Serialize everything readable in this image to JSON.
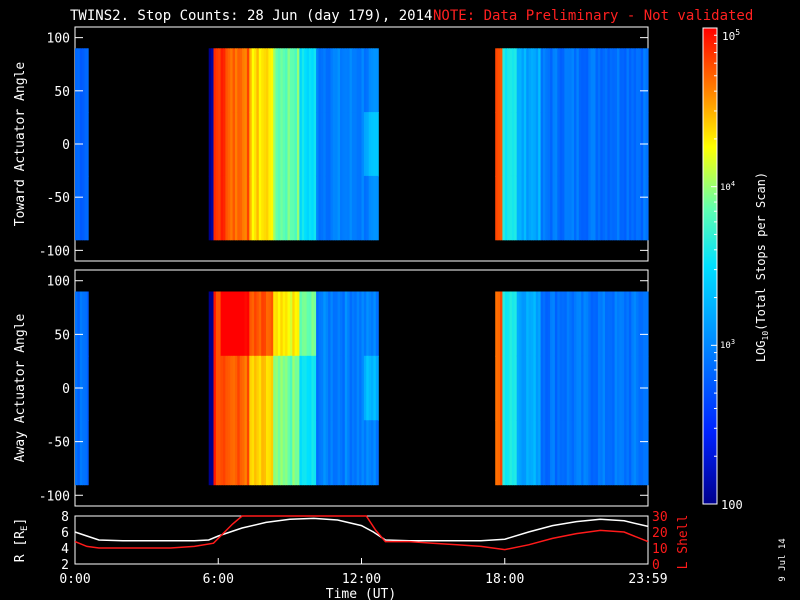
{
  "title": {
    "main": "TWINS2. Stop Counts: 28 Jun (day 179), 2014",
    "note": "NOTE: Data Preliminary - Not validated",
    "note_color": "#ff2020"
  },
  "colors": {
    "background": "#000000",
    "axes": "#ffffff",
    "lshell": "#ff1a1a"
  },
  "chart_data": [
    {
      "type": "heatmap",
      "name": "toward",
      "ylabel": "Toward Actuator Angle",
      "ylim": [
        -110,
        110
      ],
      "yticks": [
        100,
        50,
        0,
        -50,
        -100
      ],
      "angle_range": [
        -90,
        90
      ],
      "data_segments_hours": [
        [
          0.0,
          0.55
        ],
        [
          5.6,
          12.7
        ],
        [
          17.6,
          24.0
        ]
      ],
      "value_description": "log10 total stops per scan; red high near 6:00, cyan to blue at later times"
    },
    {
      "type": "heatmap",
      "name": "away",
      "ylabel": "Away Actuator Angle",
      "ylim": [
        -110,
        110
      ],
      "yticks": [
        100,
        50,
        0,
        -50,
        -100
      ],
      "angle_range": [
        -90,
        90
      ],
      "data_segments_hours": [
        [
          0.0,
          0.55
        ],
        [
          5.6,
          12.7
        ],
        [
          17.6,
          24.0
        ]
      ],
      "value_description": "log10 total stops per scan; red high near 6:00, cyan to blue at later times"
    },
    {
      "type": "line",
      "name": "orbit",
      "xlabel": "Time (UT)",
      "xticks": [
        "0:00",
        "6:00",
        "12:00",
        "18:00",
        "23:59"
      ],
      "xtick_hours": [
        0,
        6,
        12,
        18,
        24
      ],
      "ylabel_left": "R [R",
      "ylabel_left_sub": "E",
      "ylabel_left_end": "]",
      "ylim_left": [
        2,
        8
      ],
      "yticks_left": [
        "8",
        "6",
        "4",
        "2"
      ],
      "yticks_left_values": [
        8,
        6,
        4,
        2
      ],
      "ylabel_right": "L Shell",
      "ylim_right": [
        0,
        30
      ],
      "yticks_right": [
        "30",
        "20",
        "10",
        "0"
      ],
      "yticks_right_values": [
        30,
        20,
        10,
        0
      ],
      "series": [
        {
          "name": "R",
          "color": "#ffffff",
          "x": [
            0,
            0.5,
            1,
            2,
            3,
            4,
            5,
            5.6,
            6,
            7,
            8,
            9,
            10,
            11,
            12,
            12.5,
            13,
            14,
            15,
            16,
            17,
            18,
            19,
            20,
            21,
            22,
            23,
            24
          ],
          "y": [
            6.0,
            5.5,
            5.0,
            4.9,
            4.9,
            4.9,
            4.9,
            5.0,
            5.5,
            6.5,
            7.2,
            7.6,
            7.7,
            7.5,
            6.8,
            6.0,
            5.0,
            4.9,
            4.9,
            4.9,
            4.9,
            5.1,
            6.0,
            6.8,
            7.3,
            7.6,
            7.4,
            6.7
          ]
        },
        {
          "name": "L Shell",
          "color": "#ff1a1a",
          "x": [
            0,
            0.5,
            1,
            2,
            3,
            4,
            5,
            5.8,
            6.2,
            6.6,
            7.0,
            12.2,
            12.6,
            13.0,
            14,
            15,
            16,
            17,
            18,
            19,
            20,
            21,
            22,
            23,
            24
          ],
          "y": [
            14,
            11,
            10,
            10,
            10,
            10,
            11,
            13,
            19,
            25,
            31,
            31,
            21,
            14,
            14,
            13,
            12,
            11,
            9,
            12,
            16,
            19,
            21,
            20,
            14
          ]
        }
      ]
    }
  ],
  "colorbar": {
    "label_prefix": "LOG",
    "label_sub": "10",
    "label_suffix": "(Total Stops per Scan)",
    "min_label": "100",
    "mid_base": "10",
    "mid_exp": "3",
    "upper_base": "10",
    "upper_exp": "4",
    "top_base": "10",
    "top_exp": "5",
    "log_min": 2,
    "log_max": 5
  },
  "side_date": "9 Jul 14"
}
